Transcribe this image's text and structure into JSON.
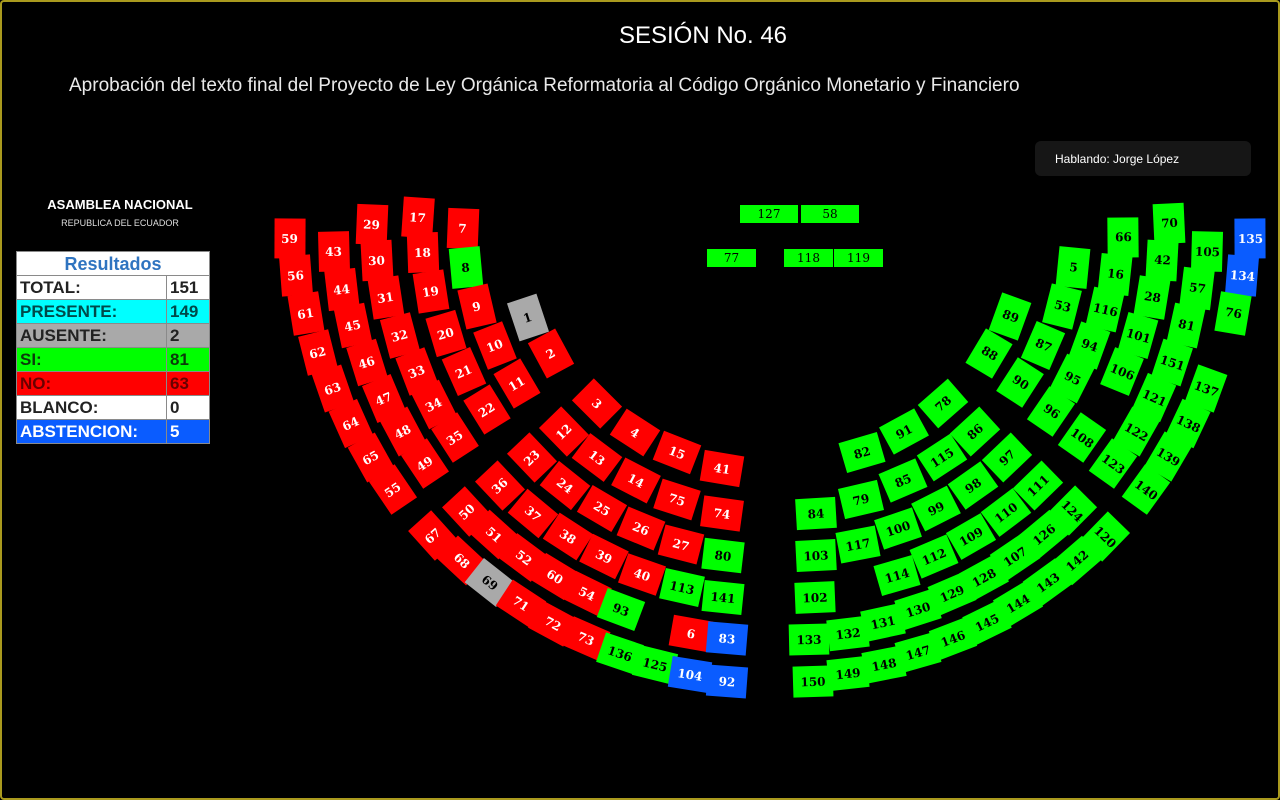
{
  "header": {
    "title": "SESIÓN No. 46",
    "subtitle": "Aprobación del texto final del Proyecto de Ley Orgánica Reformatoria al Código Orgánico Monetario y Financiero"
  },
  "speaker": "Hablando: Jorge López",
  "organization": {
    "name": "ASAMBLEA NACIONAL",
    "country": "REPUBLICA DEL ECUADOR"
  },
  "results": {
    "title": "Resultados",
    "rows": [
      {
        "label": "TOTAL:",
        "value": "151",
        "bg": "#ffffff",
        "fg": "#222222"
      },
      {
        "label": "PRESENTE:",
        "value": "149",
        "bg": "#00ffff",
        "fg": "#004a4a"
      },
      {
        "label": "AUSENTE:",
        "value": "2",
        "bg": "#a9a9a9",
        "fg": "#222222"
      },
      {
        "label": "SI:",
        "value": "81",
        "bg": "#00ff00",
        "fg": "#0b3b0b"
      },
      {
        "label": "NO:",
        "value": "63",
        "bg": "#ff0000",
        "fg": "#6a0000"
      },
      {
        "label": "BLANCO:",
        "value": "0",
        "bg": "#ffffff",
        "fg": "#222222"
      },
      {
        "label": "ABSTENCION:",
        "value": "5",
        "bg": "#0a5cff",
        "fg": "#ffffff"
      }
    ]
  },
  "vote_colors": {
    "si": "#00ff00",
    "no": "#ff0000",
    "abstencion": "#0a5cff",
    "ausente": "#a9a9a9"
  },
  "top_seats": [
    {
      "number": "127",
      "vote": "si"
    },
    {
      "number": "58",
      "vote": "si"
    },
    {
      "number": "77",
      "vote": "si"
    },
    {
      "number": "118",
      "vote": "si"
    },
    {
      "number": "119",
      "vote": "si"
    }
  ],
  "seats": [
    {
      "number": "59",
      "vote": "no"
    },
    {
      "number": "56",
      "vote": "no"
    },
    {
      "number": "61",
      "vote": "no"
    },
    {
      "number": "62",
      "vote": "no"
    },
    {
      "number": "63",
      "vote": "no"
    },
    {
      "number": "64",
      "vote": "no"
    },
    {
      "number": "65",
      "vote": "no"
    },
    {
      "number": "55",
      "vote": "no"
    },
    {
      "number": "43",
      "vote": "no"
    },
    {
      "number": "44",
      "vote": "no"
    },
    {
      "number": "45",
      "vote": "no"
    },
    {
      "number": "46",
      "vote": "no"
    },
    {
      "number": "47",
      "vote": "no"
    },
    {
      "number": "48",
      "vote": "no"
    },
    {
      "number": "49",
      "vote": "no"
    },
    {
      "number": "29",
      "vote": "no"
    },
    {
      "number": "30",
      "vote": "no"
    },
    {
      "number": "31",
      "vote": "no"
    },
    {
      "number": "32",
      "vote": "no"
    },
    {
      "number": "33",
      "vote": "no"
    },
    {
      "number": "34",
      "vote": "no"
    },
    {
      "number": "35",
      "vote": "no"
    },
    {
      "number": "17",
      "vote": "no"
    },
    {
      "number": "18",
      "vote": "no"
    },
    {
      "number": "19",
      "vote": "no"
    },
    {
      "number": "20",
      "vote": "no"
    },
    {
      "number": "21",
      "vote": "no"
    },
    {
      "number": "22",
      "vote": "no"
    },
    {
      "number": "7",
      "vote": "no"
    },
    {
      "number": "8",
      "vote": "si"
    },
    {
      "number": "9",
      "vote": "no"
    },
    {
      "number": "10",
      "vote": "no"
    },
    {
      "number": "11",
      "vote": "no"
    },
    {
      "number": "1",
      "vote": "ausente"
    },
    {
      "number": "2",
      "vote": "no"
    },
    {
      "number": "3",
      "vote": "no"
    },
    {
      "number": "4",
      "vote": "no"
    },
    {
      "number": "15",
      "vote": "no"
    },
    {
      "number": "41",
      "vote": "no"
    },
    {
      "number": "12",
      "vote": "no"
    },
    {
      "number": "13",
      "vote": "no"
    },
    {
      "number": "14",
      "vote": "no"
    },
    {
      "number": "75",
      "vote": "no"
    },
    {
      "number": "74",
      "vote": "no"
    },
    {
      "number": "23",
      "vote": "no"
    },
    {
      "number": "24",
      "vote": "no"
    },
    {
      "number": "25",
      "vote": "no"
    },
    {
      "number": "26",
      "vote": "no"
    },
    {
      "number": "27",
      "vote": "no"
    },
    {
      "number": "80",
      "vote": "si"
    },
    {
      "number": "36",
      "vote": "no"
    },
    {
      "number": "37",
      "vote": "no"
    },
    {
      "number": "38",
      "vote": "no"
    },
    {
      "number": "39",
      "vote": "no"
    },
    {
      "number": "40",
      "vote": "no"
    },
    {
      "number": "113",
      "vote": "si"
    },
    {
      "number": "141",
      "vote": "si"
    },
    {
      "number": "50",
      "vote": "no"
    },
    {
      "number": "51",
      "vote": "no"
    },
    {
      "number": "52",
      "vote": "no"
    },
    {
      "number": "60",
      "vote": "no"
    },
    {
      "number": "54",
      "vote": "no"
    },
    {
      "number": "93",
      "vote": "si"
    },
    {
      "number": "67",
      "vote": "no"
    },
    {
      "number": "68",
      "vote": "no"
    },
    {
      "number": "69",
      "vote": "ausente"
    },
    {
      "number": "71",
      "vote": "no"
    },
    {
      "number": "72",
      "vote": "no"
    },
    {
      "number": "73",
      "vote": "no"
    },
    {
      "number": "136",
      "vote": "si"
    },
    {
      "number": "125",
      "vote": "si"
    },
    {
      "number": "104",
      "vote": "abstencion"
    },
    {
      "number": "92",
      "vote": "abstencion"
    },
    {
      "number": "6",
      "vote": "no"
    },
    {
      "number": "83",
      "vote": "abstencion"
    },
    {
      "number": "135",
      "vote": "abstencion"
    },
    {
      "number": "134",
      "vote": "abstencion"
    },
    {
      "number": "76",
      "vote": "si"
    },
    {
      "number": "70",
      "vote": "si"
    },
    {
      "number": "42",
      "vote": "si"
    },
    {
      "number": "28",
      "vote": "si"
    },
    {
      "number": "101",
      "vote": "si"
    },
    {
      "number": "106",
      "vote": "si"
    },
    {
      "number": "66",
      "vote": "si"
    },
    {
      "number": "16",
      "vote": "si"
    },
    {
      "number": "116",
      "vote": "si"
    },
    {
      "number": "94",
      "vote": "si"
    },
    {
      "number": "95",
      "vote": "si"
    },
    {
      "number": "96",
      "vote": "si"
    },
    {
      "number": "108",
      "vote": "si"
    },
    {
      "number": "5",
      "vote": "si"
    },
    {
      "number": "53",
      "vote": "si"
    },
    {
      "number": "87",
      "vote": "si"
    },
    {
      "number": "90",
      "vote": "si"
    },
    {
      "number": "89",
      "vote": "si"
    },
    {
      "number": "88",
      "vote": "si"
    },
    {
      "number": "105",
      "vote": "si"
    },
    {
      "number": "57",
      "vote": "si"
    },
    {
      "number": "81",
      "vote": "si"
    },
    {
      "number": "151",
      "vote": "si"
    },
    {
      "number": "121",
      "vote": "si"
    },
    {
      "number": "122",
      "vote": "si"
    },
    {
      "number": "123",
      "vote": "si"
    },
    {
      "number": "137",
      "vote": "si"
    },
    {
      "number": "138",
      "vote": "si"
    },
    {
      "number": "139",
      "vote": "si"
    },
    {
      "number": "140",
      "vote": "si"
    },
    {
      "number": "78",
      "vote": "si"
    },
    {
      "number": "91",
      "vote": "si"
    },
    {
      "number": "82",
      "vote": "si"
    },
    {
      "number": "86",
      "vote": "si"
    },
    {
      "number": "115",
      "vote": "si"
    },
    {
      "number": "85",
      "vote": "si"
    },
    {
      "number": "79",
      "vote": "si"
    },
    {
      "number": "84",
      "vote": "si"
    },
    {
      "number": "97",
      "vote": "si"
    },
    {
      "number": "98",
      "vote": "si"
    },
    {
      "number": "99",
      "vote": "si"
    },
    {
      "number": "111",
      "vote": "si"
    },
    {
      "number": "110",
      "vote": "si"
    },
    {
      "number": "124",
      "vote": "si"
    },
    {
      "number": "103",
      "vote": "si"
    },
    {
      "number": "117",
      "vote": "si"
    },
    {
      "number": "100",
      "vote": "si"
    },
    {
      "number": "109",
      "vote": "si"
    },
    {
      "number": "126",
      "vote": "si"
    },
    {
      "number": "120",
      "vote": "si"
    },
    {
      "number": "114",
      "vote": "si"
    },
    {
      "number": "112",
      "vote": "si"
    },
    {
      "number": "107",
      "vote": "si"
    },
    {
      "number": "142",
      "vote": "si"
    },
    {
      "number": "102",
      "vote": "si"
    },
    {
      "number": "133",
      "vote": "si"
    },
    {
      "number": "132",
      "vote": "si"
    },
    {
      "number": "131",
      "vote": "si"
    },
    {
      "number": "130",
      "vote": "si"
    },
    {
      "number": "129",
      "vote": "si"
    },
    {
      "number": "128",
      "vote": "si"
    },
    {
      "number": "143",
      "vote": "si"
    },
    {
      "number": "144",
      "vote": "si"
    },
    {
      "number": "145",
      "vote": "si"
    },
    {
      "number": "146",
      "vote": "si"
    },
    {
      "number": "147",
      "vote": "si"
    },
    {
      "number": "148",
      "vote": "si"
    },
    {
      "number": "149",
      "vote": "si"
    },
    {
      "number": "150",
      "vote": "si"
    }
  ]
}
